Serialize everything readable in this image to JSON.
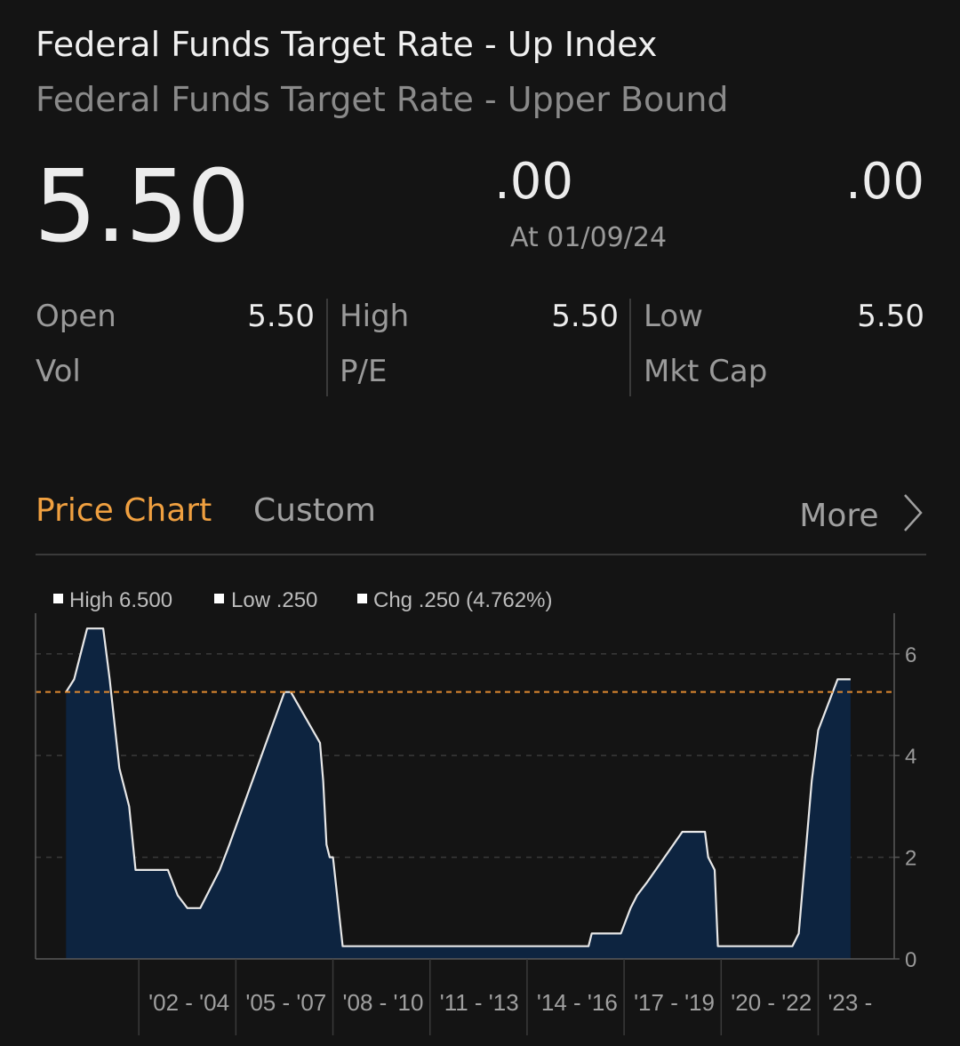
{
  "header": {
    "title": "Federal Funds Target Rate - Up Index",
    "subtitle": "Federal Funds Target Rate - Upper Bound"
  },
  "quote": {
    "price": "5.50",
    "change": ".00",
    "change_pct": ".00",
    "as_of": "At 01/09/24"
  },
  "stats": {
    "open_label": "Open",
    "open_value": "5.50",
    "high_label": "High",
    "high_value": "5.50",
    "low_label": "Low",
    "low_value": "5.50",
    "vol_label": "Vol",
    "vol_value": "",
    "pe_label": "P/E",
    "pe_value": "",
    "mktcap_label": "Mkt Cap",
    "mktcap_value": ""
  },
  "tabs": {
    "price_chart": "Price Chart",
    "custom": "Custom",
    "more": "More"
  },
  "legend": {
    "high": "High 6.500",
    "low": "Low .250",
    "chg": "Chg .250 (4.762%)"
  },
  "colors": {
    "accent": "#f0a040",
    "area_fill": "#0d2440",
    "line": "#e8e8e8",
    "ref_line": "#e08a30"
  },
  "chart_data": {
    "type": "area",
    "title": "",
    "xlabel": "",
    "ylabel": "",
    "ylim": [
      0,
      6.8
    ],
    "yticks": [
      "0",
      "2",
      "4",
      "6"
    ],
    "xticks": [
      "'02 - '04",
      "'05 - '07",
      "'08 - '10",
      "'11 - '13",
      "'14 - '16",
      "'17 - '19",
      "'20 - '22",
      "'23 -"
    ],
    "reference_value": 5.25,
    "x": [
      1999.75,
      2000.0,
      2000.4,
      2000.9,
      2001.1,
      2001.4,
      2001.7,
      2001.9,
      2002.9,
      2003.2,
      2003.5,
      2003.9,
      2004.5,
      2004.8,
      2006.5,
      2006.7,
      2007.6,
      2007.7,
      2007.8,
      2007.9,
      2008.0,
      2008.3,
      2008.9,
      2015.9,
      2016.0,
      2016.9,
      2017.2,
      2017.4,
      2017.7,
      2018.8,
      2019.5,
      2019.6,
      2019.8,
      2019.9,
      2020.2,
      2022.2,
      2022.4,
      2022.6,
      2022.8,
      2023.0,
      2023.3,
      2023.6,
      2024.0
    ],
    "values": [
      5.25,
      5.5,
      6.5,
      6.5,
      5.5,
      3.75,
      3.0,
      1.75,
      1.75,
      1.25,
      1.0,
      1.0,
      1.75,
      2.25,
      5.25,
      5.25,
      4.25,
      3.5,
      2.25,
      2.0,
      2.0,
      0.25,
      0.25,
      0.25,
      0.5,
      0.5,
      1.0,
      1.25,
      1.5,
      2.5,
      2.5,
      2.0,
      1.75,
      0.25,
      0.25,
      0.25,
      0.5,
      2.0,
      3.5,
      4.5,
      5.0,
      5.5,
      5.5
    ]
  }
}
